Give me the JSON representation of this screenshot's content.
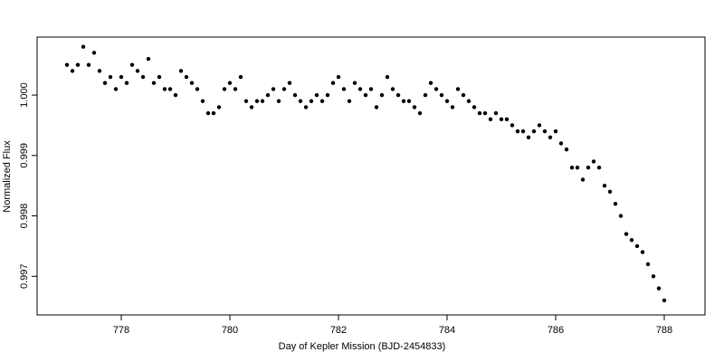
{
  "chart_data": {
    "type": "scatter",
    "xlabel": "Day of Kepler Mission (BJD-2454833)",
    "ylabel": "Normalized Flux",
    "color": "#000000",
    "xlim": [
      776.45,
      788.75
    ],
    "ylim": [
      0.99636,
      1.00096
    ],
    "xticks": [
      778,
      780,
      782,
      784,
      786,
      788
    ],
    "yticks": [
      0.997,
      0.998,
      0.999,
      {
        "value": 1,
        "label": "1.000"
      }
    ],
    "x": [
      777.0,
      777.1,
      777.2,
      777.3,
      777.4,
      777.5,
      777.6,
      777.7,
      777.8,
      777.9,
      778.0,
      778.1,
      778.2,
      778.3,
      778.4,
      778.5,
      778.6,
      778.7,
      778.8,
      778.9,
      779.0,
      779.1,
      779.2,
      779.3,
      779.4,
      779.5,
      779.6,
      779.7,
      779.8,
      779.9,
      780.0,
      780.1,
      780.2,
      780.3,
      780.4,
      780.5,
      780.6,
      780.7,
      780.8,
      780.9,
      781.0,
      781.1,
      781.2,
      781.3,
      781.4,
      781.5,
      781.6,
      781.7,
      781.8,
      781.9,
      782.0,
      782.1,
      782.2,
      782.3,
      782.4,
      782.5,
      782.6,
      782.7,
      782.8,
      782.9,
      783.0,
      783.1,
      783.2,
      783.3,
      783.4,
      783.5,
      783.6,
      783.7,
      783.8,
      783.9,
      784.0,
      784.1,
      784.2,
      784.3,
      784.4,
      784.5,
      784.6,
      784.7,
      784.8,
      784.9,
      785.0,
      785.1,
      785.2,
      785.3,
      785.4,
      785.5,
      785.6,
      785.7,
      785.8,
      785.9,
      786.0,
      786.1,
      786.2,
      786.3,
      786.4,
      786.5,
      786.6,
      786.7,
      786.8,
      786.9,
      787.0,
      787.1,
      787.2,
      787.3,
      787.4,
      787.5,
      787.6,
      787.7,
      787.8,
      787.9,
      788.0
    ],
    "values": [
      1.0005,
      1.0004,
      1.0005,
      1.0008,
      1.0005,
      1.0007,
      1.0004,
      1.0002,
      1.0003,
      1.0001,
      1.0003,
      1.0002,
      1.0005,
      1.0004,
      1.0003,
      1.0006,
      1.0002,
      1.0003,
      1.0001,
      1.0001,
      1.0,
      1.0004,
      1.0003,
      1.0002,
      1.0001,
      0.9999,
      0.9997,
      0.9997,
      0.9998,
      1.0001,
      1.0002,
      1.0001,
      1.0003,
      0.9999,
      0.9998,
      0.9999,
      0.9999,
      1.0,
      1.0001,
      0.9999,
      1.0001,
      1.0002,
      1.0,
      0.9999,
      0.9998,
      0.9999,
      1.0,
      0.9999,
      1.0,
      1.0002,
      1.0003,
      1.0001,
      0.9999,
      1.0002,
      1.0001,
      1.0,
      1.0001,
      0.9998,
      1.0,
      1.0003,
      1.0001,
      1.0,
      0.9999,
      0.9999,
      0.9998,
      0.9997,
      1.0,
      1.0002,
      1.0001,
      1.0,
      0.9999,
      0.9998,
      1.0001,
      1.0,
      0.9999,
      0.9998,
      0.9997,
      0.9997,
      0.9996,
      0.9997,
      0.9996,
      0.9996,
      0.9995,
      0.9994,
      0.9994,
      0.9993,
      0.9994,
      0.9995,
      0.9994,
      0.9993,
      0.9994,
      0.9992,
      0.9991,
      0.9988,
      0.9988,
      0.9986,
      0.9988,
      0.9989,
      0.9988,
      0.9985,
      0.9984,
      0.9982,
      0.998,
      0.9977,
      0.9976,
      0.9975,
      0.9974,
      0.9972,
      0.997,
      0.9968,
      0.9966
    ]
  }
}
